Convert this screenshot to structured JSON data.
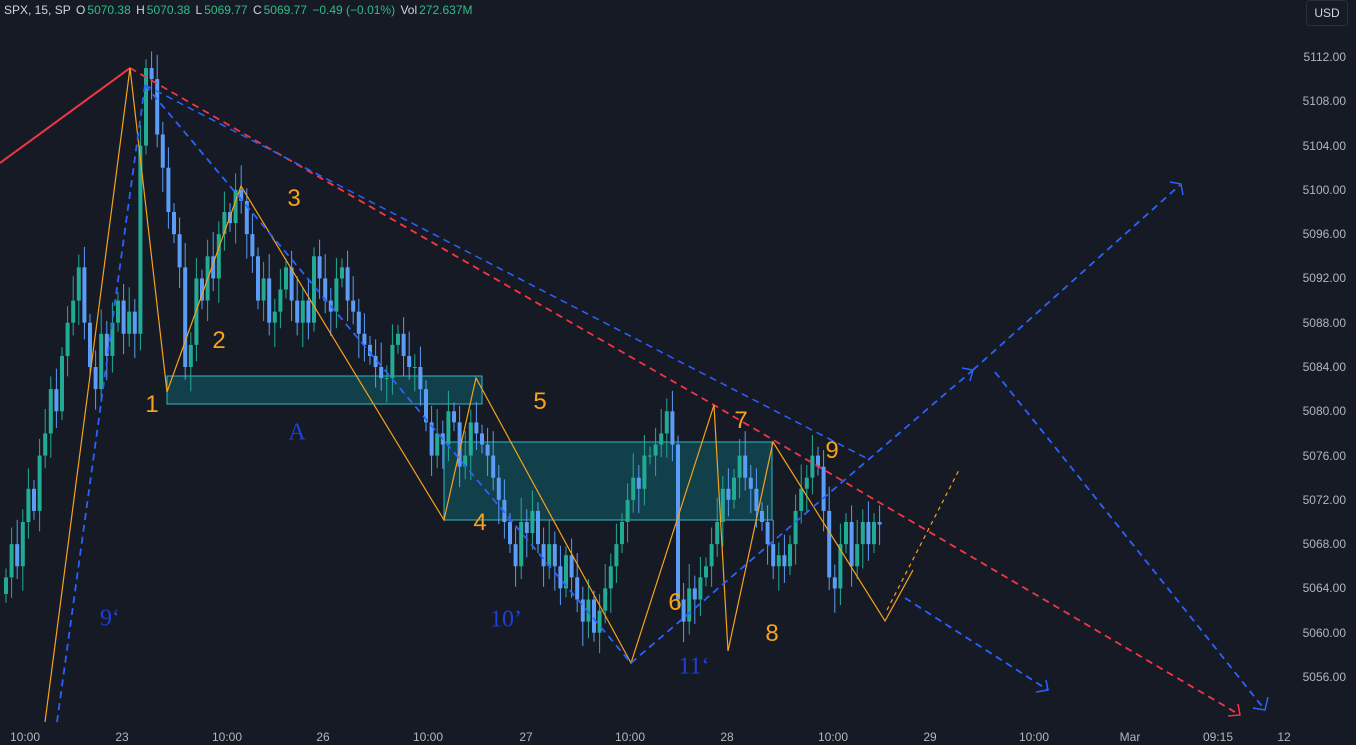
{
  "legend": {
    "symbol": "SPX, 15, SP",
    "o_label": "O",
    "o_value": "5070.38",
    "h_label": "H",
    "h_value": "5070.38",
    "l_label": "L",
    "l_value": "5069.77",
    "c_label": "C",
    "c_value": "5069.77",
    "change": "−0.49 (−0.01%)",
    "vol_label": "Vol",
    "vol_value": "272.637M"
  },
  "currency": "USD",
  "colors": {
    "background": "#161a25",
    "up_candle": "#22ab94",
    "down_candle": "#5b9cf6",
    "orange_wave": "#f7a21b",
    "blue_channel": "#2962ff",
    "red_trend": "#f23645",
    "zone_fill": "#0f5f6a"
  },
  "y_axis": [
    "5112.00",
    "5108.00",
    "5104.00",
    "5100.00",
    "5096.00",
    "5092.00",
    "5088.00",
    "5084.00",
    "5080.00",
    "5076.00",
    "5072.00",
    "5068.00",
    "5064.00",
    "5060.00",
    "5056.00"
  ],
  "x_axis": [
    "10:00",
    "23",
    "10:00",
    "26",
    "10:00",
    "27",
    "10:00",
    "28",
    "10:00",
    "29",
    "10:00",
    "Mar",
    "09:15",
    "12"
  ],
  "annotations": {
    "orange": [
      "1",
      "2",
      "3",
      "4",
      "5",
      "6",
      "7",
      "8",
      "9"
    ],
    "blue": [
      "9‘",
      "10’",
      "11‘",
      "A"
    ]
  },
  "chart_data": {
    "type": "candlestick",
    "symbol": "SPX",
    "timeframe": "15",
    "ylim": [
      5053,
      5115
    ],
    "y_ticks": [
      5112,
      5108,
      5104,
      5100,
      5096,
      5092,
      5088,
      5084,
      5080,
      5076,
      5072,
      5068,
      5064,
      5060,
      5056
    ],
    "x_ticks": [
      "10:00",
      "23",
      "10:00",
      "26",
      "10:00",
      "27",
      "10:00",
      "28",
      "10:00",
      "29",
      "10:00",
      "Mar",
      "09:15",
      "12"
    ],
    "closes": [
      5065,
      5068,
      5066,
      5070,
      5073,
      5071,
      5076,
      5078,
      5082,
      5080,
      5085,
      5088,
      5090,
      5093,
      5088,
      5084,
      5082,
      5087,
      5085,
      5088,
      5090,
      5087,
      5089,
      5087,
      5104,
      5111,
      5110,
      5105,
      5102,
      5098,
      5096,
      5093,
      5084,
      5086,
      5092,
      5090,
      5094,
      5092,
      5096,
      5098,
      5097,
      5100,
      5099,
      5096,
      5094,
      5090,
      5092,
      5088,
      5089,
      5091,
      5093,
      5090,
      5088,
      5090,
      5088,
      5094,
      5092,
      5090,
      5089,
      5092,
      5093,
      5090,
      5089,
      5087,
      5086,
      5085,
      5084,
      5083,
      5083,
      5086,
      5087,
      5085,
      5084,
      5084,
      5082,
      5079,
      5076,
      5078,
      5077,
      5080,
      5079,
      5075,
      5076,
      5079,
      5078,
      5077,
      5076,
      5074,
      5072,
      5070,
      5068,
      5066,
      5070,
      5069,
      5071,
      5068,
      5066,
      5068,
      5066,
      5064,
      5067,
      5065,
      5063,
      5061,
      5063,
      5060,
      5062,
      5064,
      5066,
      5068,
      5070,
      5072,
      5074,
      5073,
      5076,
      5076,
      5077,
      5078,
      5080,
      5077,
      5063,
      5061,
      5064,
      5063,
      5065,
      5066,
      5068,
      5070,
      5073,
      5072,
      5074,
      5076,
      5074,
      5073,
      5071,
      5070,
      5068,
      5066,
      5067,
      5066,
      5068,
      5071,
      5073,
      5074,
      5076,
      5075,
      5071,
      5065,
      5064,
      5068,
      5070,
      5066,
      5068,
      5070,
      5068,
      5070,
      5069.77
    ]
  }
}
